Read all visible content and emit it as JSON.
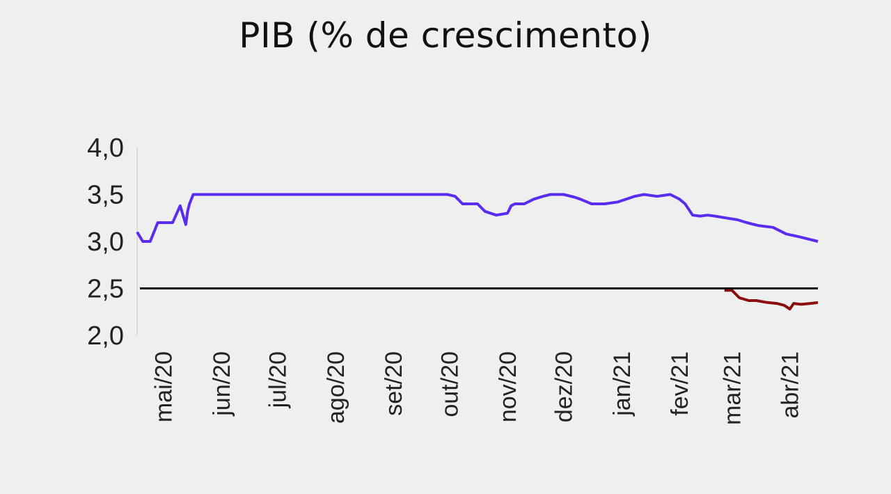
{
  "chart_data": {
    "type": "line",
    "title": "PIB (% de crescimento)",
    "xlabel": "",
    "ylabel": "",
    "ylim": [
      2.0,
      4.0
    ],
    "y_ticks": [
      "4,0",
      "3,5",
      "3,0",
      "2,5",
      "2,0"
    ],
    "y_tick_values": [
      4.0,
      3.5,
      3.0,
      2.5,
      2.0
    ],
    "x_ticks": [
      "mai/20",
      "jun/20",
      "jul/20",
      "ago/20",
      "set/20",
      "out/20",
      "nov/20",
      "dez/20",
      "jan/21",
      "fev/21",
      "mar/21",
      "abr/21"
    ],
    "reference_line": {
      "y": 2.5,
      "color": "#111111"
    },
    "grid": false,
    "series": [
      {
        "color": "#5b2cf0",
        "x": [
          "2020-04-17",
          "2020-04-20",
          "2020-04-24",
          "2020-04-28",
          "2020-05-01",
          "2020-05-06",
          "2020-05-10",
          "2020-05-13",
          "2020-05-14",
          "2020-05-15",
          "2020-05-17",
          "2020-05-19",
          "2020-05-22",
          "2020-06-01",
          "2020-07-01",
          "2020-08-01",
          "2020-09-01",
          "2020-09-30",
          "2020-10-04",
          "2020-10-08",
          "2020-10-16",
          "2020-10-20",
          "2020-10-26",
          "2020-11-01",
          "2020-11-03",
          "2020-11-05",
          "2020-11-10",
          "2020-11-15",
          "2020-11-20",
          "2020-11-24",
          "2020-12-01",
          "2020-12-07",
          "2020-12-10",
          "2020-12-16",
          "2020-12-19",
          "2020-12-23",
          "2020-12-30",
          "2021-01-08",
          "2021-01-13",
          "2021-01-20",
          "2021-01-27",
          "2021-01-30",
          "2021-02-01",
          "2021-02-04",
          "2021-02-08",
          "2021-02-12",
          "2021-02-16",
          "2021-02-20",
          "2021-02-26",
          "2021-03-04",
          "2021-03-09",
          "2021-03-15",
          "2021-03-23",
          "2021-03-30",
          "2021-04-06",
          "2021-04-12",
          "2021-04-16"
        ],
        "y": [
          3.1,
          3.0,
          3.0,
          3.2,
          3.2,
          3.2,
          3.38,
          3.18,
          3.32,
          3.4,
          3.5,
          3.5,
          3.5,
          3.5,
          3.5,
          3.5,
          3.5,
          3.5,
          3.48,
          3.4,
          3.4,
          3.32,
          3.28,
          3.3,
          3.38,
          3.4,
          3.4,
          3.45,
          3.48,
          3.5,
          3.5,
          3.47,
          3.45,
          3.4,
          3.4,
          3.4,
          3.42,
          3.48,
          3.5,
          3.48,
          3.5,
          3.47,
          3.45,
          3.4,
          3.28,
          3.27,
          3.28,
          3.27,
          3.25,
          3.23,
          3.2,
          3.17,
          3.15,
          3.08,
          3.05,
          3.02,
          3.0
        ]
      },
      {
        "color": "#8b0e0e",
        "x": [
          "2021-02-25",
          "2021-03-01",
          "2021-03-05",
          "2021-03-10",
          "2021-03-14",
          "2021-03-20",
          "2021-03-25",
          "2021-03-29",
          "2021-04-01",
          "2021-04-03",
          "2021-04-07",
          "2021-04-12",
          "2021-04-16"
        ],
        "y": [
          2.48,
          2.48,
          2.4,
          2.37,
          2.37,
          2.35,
          2.34,
          2.32,
          2.28,
          2.34,
          2.33,
          2.34,
          2.35
        ]
      }
    ]
  }
}
